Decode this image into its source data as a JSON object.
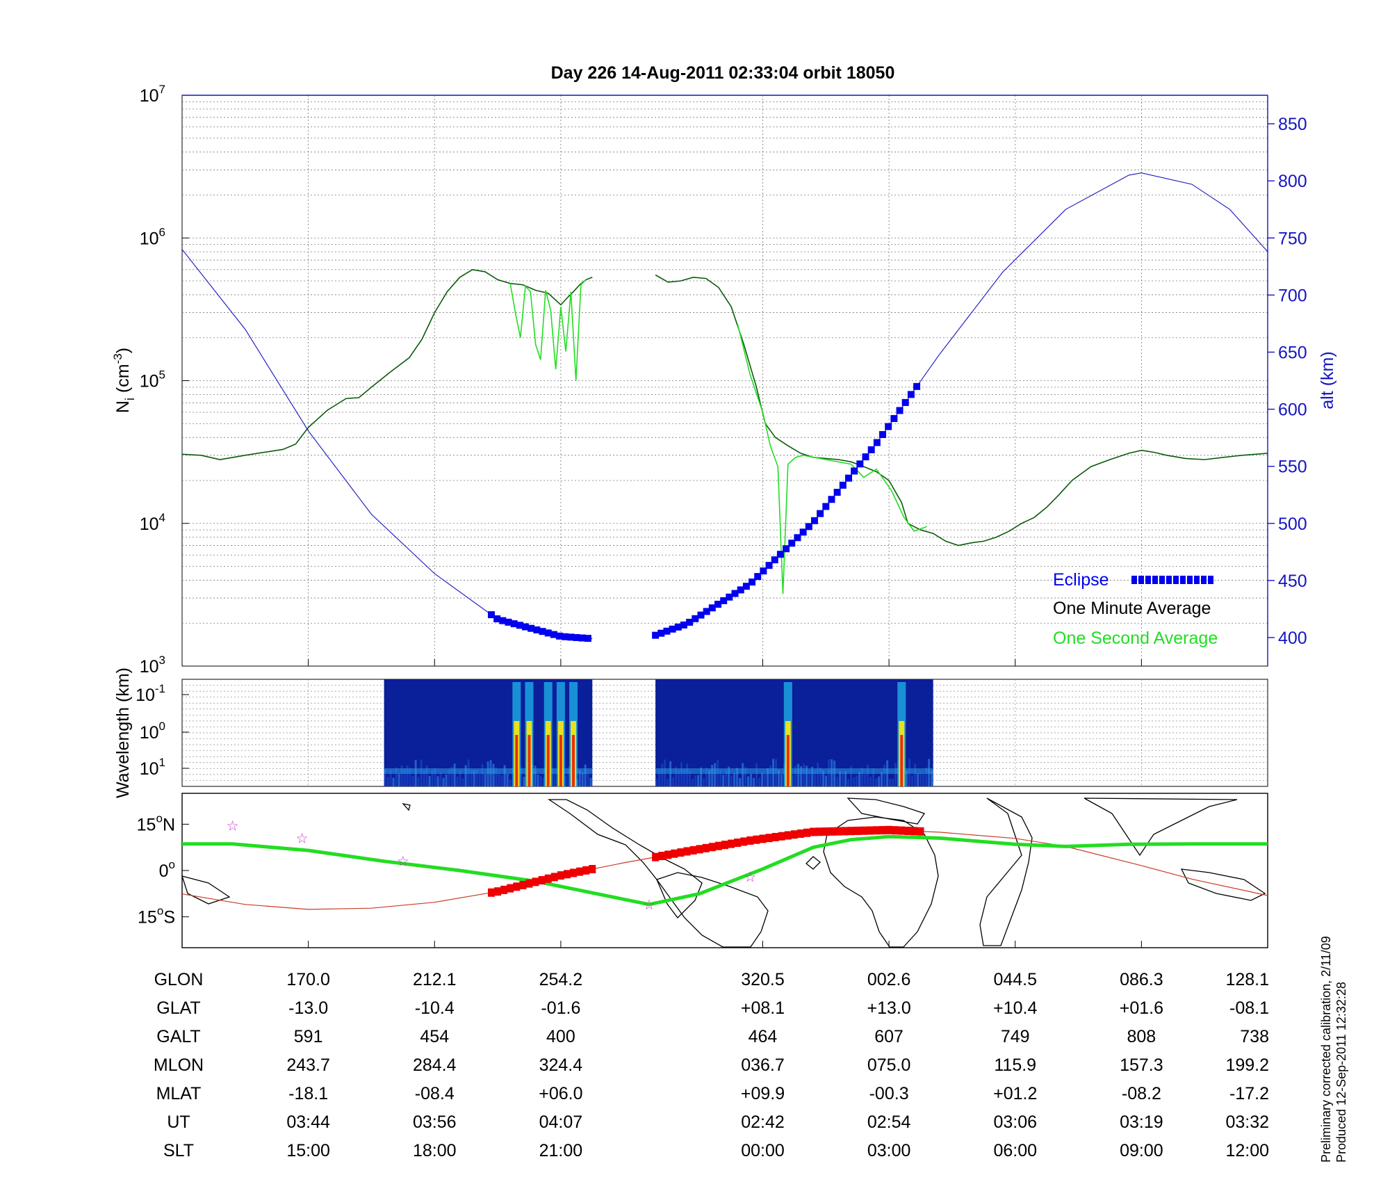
{
  "chart_data": [
    {
      "type": "line",
      "title": "Day 226  14-Aug-2011 02:33:04   orbit 18050",
      "ylabel": "N",
      "ylabel_sub": "i",
      "ylabel_unit": " (cm",
      "ylabel_exp": "-3",
      "ylabel_close": ")",
      "y_scale": "log",
      "ylim": [
        1000,
        10000000
      ],
      "y_ticks": [
        {
          "base": "10",
          "exp": "3",
          "value": 1000
        },
        {
          "base": "10",
          "exp": "4",
          "value": 10000
        },
        {
          "base": "10",
          "exp": "5",
          "value": 100000
        },
        {
          "base": "10",
          "exp": "6",
          "value": 1000000
        },
        {
          "base": "10",
          "exp": "7",
          "value": 10000000
        }
      ],
      "y2label": "alt (km)",
      "y2lim": [
        375,
        875
      ],
      "y2_ticks": [
        "400",
        "450",
        "500",
        "550",
        "600",
        "650",
        "700",
        "750",
        "800",
        "850"
      ],
      "xlim": [
        0,
        8.6
      ],
      "x_ticks": [
        1,
        2,
        3,
        4.6,
        5.6,
        6.6,
        7.6,
        8.6
      ],
      "grid": true,
      "legend_position": "bottom-right",
      "legend": [
        {
          "label": "Eclipse",
          "color": "#0000ee"
        },
        {
          "label": "One Minute Average",
          "color": "#000000"
        },
        {
          "label": "One Second Average",
          "color": "#22dd22"
        }
      ],
      "series": [
        {
          "name": "One Minute Average",
          "color": "#0a5a0a",
          "axis": "left",
          "segments": [
            [
              [
                0,
                30500
              ],
              [
                0.15,
                30000
              ],
              [
                0.3,
                28000
              ],
              [
                0.5,
                30000
              ],
              [
                0.8,
                33000
              ],
              [
                0.9,
                36000
              ],
              [
                1.0,
                47000
              ],
              [
                1.15,
                62000
              ],
              [
                1.3,
                75000
              ],
              [
                1.4,
                76000
              ],
              [
                1.5,
                90000
              ],
              [
                1.65,
                115000
              ],
              [
                1.8,
                145000
              ],
              [
                1.9,
                195000
              ],
              [
                2.0,
                300000
              ],
              [
                2.1,
                420000
              ],
              [
                2.2,
                530000
              ],
              [
                2.3,
                600000
              ],
              [
                2.4,
                580000
              ],
              [
                2.5,
                510000
              ],
              [
                2.6,
                480000
              ],
              [
                2.7,
                470000
              ],
              [
                2.8,
                430000
              ],
              [
                2.9,
                410000
              ],
              [
                3.0,
                340000
              ],
              [
                3.05,
                380000
              ],
              [
                3.1,
                420000
              ],
              [
                3.15,
                470000
              ],
              [
                3.2,
                510000
              ],
              [
                3.25,
                530000
              ]
            ],
            [
              [
                3.75,
                550000
              ],
              [
                3.85,
                490000
              ],
              [
                3.95,
                500000
              ],
              [
                4.05,
                530000
              ],
              [
                4.15,
                520000
              ],
              [
                4.25,
                450000
              ],
              [
                4.35,
                330000
              ],
              [
                4.45,
                180000
              ],
              [
                4.55,
                90000
              ],
              [
                4.62,
                50000
              ],
              [
                4.7,
                40000
              ],
              [
                4.8,
                35000
              ],
              [
                4.9,
                31000
              ],
              [
                5.0,
                29000
              ],
              [
                5.1,
                28500
              ],
              [
                5.2,
                28000
              ],
              [
                5.3,
                27000
              ],
              [
                5.4,
                25000
              ],
              [
                5.5,
                23000
              ],
              [
                5.6,
                20000
              ],
              [
                5.7,
                14000
              ],
              [
                5.75,
                10000
              ],
              [
                5.85,
                9000
              ],
              [
                5.95,
                8500
              ],
              [
                6.05,
                7500
              ],
              [
                6.15,
                7000
              ],
              [
                6.25,
                7300
              ],
              [
                6.35,
                7500
              ],
              [
                6.45,
                8000
              ],
              [
                6.55,
                8800
              ],
              [
                6.65,
                10000
              ],
              [
                6.75,
                11000
              ],
              [
                6.85,
                13000
              ],
              [
                6.95,
                16000
              ],
              [
                7.05,
                20000
              ],
              [
                7.2,
                25000
              ],
              [
                7.35,
                28000
              ],
              [
                7.5,
                31000
              ],
              [
                7.6,
                32500
              ],
              [
                7.7,
                31500
              ],
              [
                7.8,
                30000
              ],
              [
                7.95,
                28500
              ],
              [
                8.1,
                28000
              ],
              [
                8.25,
                29000
              ],
              [
                8.4,
                30000
              ],
              [
                8.6,
                31000
              ]
            ]
          ]
        },
        {
          "name": "One Second Average",
          "color": "#22dd22",
          "axis": "left",
          "segments": [
            [
              [
                2.6,
                480000
              ],
              [
                2.64,
                300000
              ],
              [
                2.68,
                200000
              ],
              [
                2.72,
                460000
              ],
              [
                2.76,
                420000
              ],
              [
                2.8,
                180000
              ],
              [
                2.84,
                140000
              ],
              [
                2.88,
                430000
              ],
              [
                2.92,
                310000
              ],
              [
                2.96,
                120000
              ],
              [
                3.0,
                330000
              ],
              [
                3.04,
                160000
              ],
              [
                3.08,
                420000
              ],
              [
                3.12,
                100000
              ],
              [
                3.16,
                470000
              ],
              [
                3.2,
                510000
              ]
            ],
            [
              [
                4.4,
                250000
              ],
              [
                4.5,
                110000
              ],
              [
                4.6,
                60000
              ],
              [
                4.66,
                35000
              ],
              [
                4.72,
                25000
              ],
              [
                4.76,
                3200
              ],
              [
                4.8,
                26000
              ],
              [
                4.86,
                29000
              ],
              [
                4.92,
                30000
              ],
              [
                5.1,
                28000
              ],
              [
                5.3,
                26000
              ],
              [
                5.4,
                21000
              ],
              [
                5.5,
                24000
              ],
              [
                5.62,
                17000
              ],
              [
                5.72,
                11000
              ],
              [
                5.8,
                8800
              ],
              [
                5.9,
                9500
              ]
            ]
          ]
        },
        {
          "name": "alt (km)",
          "color": "#1515c0",
          "axis": "right",
          "segments": [
            [
              [
                0,
                740
              ],
              [
                0.5,
                670
              ],
              [
                1.0,
                581
              ],
              [
                1.5,
                508
              ],
              [
                2.0,
                456
              ],
              [
                2.5,
                416
              ],
              [
                3.0,
                401
              ],
              [
                3.25,
                399
              ]
            ],
            [
              [
                3.75,
                402
              ],
              [
                4.0,
                412
              ],
              [
                4.5,
                447
              ],
              [
                5.0,
                501
              ],
              [
                5.5,
                570
              ],
              [
                6.0,
                648
              ],
              [
                6.5,
                720
              ],
              [
                7.0,
                775
              ],
              [
                7.5,
                805
              ],
              [
                7.6,
                807
              ],
              [
                8.0,
                797
              ],
              [
                8.3,
                775
              ],
              [
                8.6,
                738
              ]
            ]
          ]
        }
      ],
      "eclipse": [
        {
          "from": 2.45,
          "to": 3.25
        },
        {
          "from": 3.75,
          "to": 5.85
        }
      ]
    },
    {
      "type": "heatmap",
      "ylabel": "Wavelength (km)",
      "y_ticks": [
        {
          "base": "10",
          "exp": "-1"
        },
        {
          "base": "10",
          "exp": "0"
        },
        {
          "base": "10",
          "exp": "1"
        }
      ],
      "blocks": [
        {
          "from": 1.6,
          "to": 3.25,
          "bright_at": [
            2.65,
            2.75,
            2.9,
            3.0,
            3.1
          ]
        },
        {
          "from": 3.75,
          "to": 5.95,
          "bright_at": [
            4.8,
            5.7
          ]
        }
      ]
    },
    {
      "type": "line",
      "y_ticks": [
        {
          "label": "15",
          "sup": "o",
          "hemi": "N",
          "value": 15
        },
        {
          "label": "0",
          "sup": "o",
          "hemi": "",
          "value": 0
        },
        {
          "label": "15",
          "sup": "o",
          "hemi": "S",
          "value": -15
        }
      ],
      "ylim": [
        -25,
        25
      ],
      "series": [
        {
          "name": "geographic track",
          "color": "#c83c28",
          "points": [
            [
              0,
              -7.6
            ],
            [
              0.5,
              -11
            ],
            [
              1.0,
              -12.6
            ],
            [
              1.5,
              -12.2
            ],
            [
              2.0,
              -10.3
            ],
            [
              2.5,
              -6.8
            ],
            [
              3.0,
              -1.6
            ],
            [
              3.5,
              2.5
            ],
            [
              4.0,
              6.2
            ],
            [
              4.5,
              9.7
            ],
            [
              5.0,
              12.5
            ],
            [
              5.6,
              13.1
            ],
            [
              6.0,
              12.4
            ],
            [
              6.6,
              10.4
            ],
            [
              7.0,
              7.8
            ],
            [
              7.6,
              1.6
            ],
            [
              8.0,
              -2.8
            ],
            [
              8.6,
              -8.1
            ]
          ]
        },
        {
          "name": "magnetic equator",
          "color": "#22dd22",
          "points": [
            [
              0,
              8.6
            ],
            [
              0.4,
              8.6
            ],
            [
              1.0,
              6.5
            ],
            [
              1.6,
              3.0
            ],
            [
              2.2,
              0
            ],
            [
              2.8,
              -3.5
            ],
            [
              3.4,
              -8.5
            ],
            [
              3.7,
              -11
            ],
            [
              4.1,
              -7.5
            ],
            [
              4.6,
              0.5
            ],
            [
              5.0,
              7.5
            ],
            [
              5.3,
              10
            ],
            [
              5.6,
              11
            ],
            [
              6.0,
              10.5
            ],
            [
              6.6,
              8.5
            ],
            [
              7.0,
              7.8
            ],
            [
              7.5,
              8.5
            ],
            [
              8.0,
              8.6
            ],
            [
              8.6,
              8.6
            ]
          ]
        }
      ],
      "stars": [
        [
          0.4,
          14.5
        ],
        [
          0.95,
          10.5
        ],
        [
          1.75,
          3.0
        ],
        [
          3.7,
          -11
        ],
        [
          4.5,
          -2
        ]
      ],
      "eclipse": [
        {
          "from": 2.45,
          "to": 3.25
        },
        {
          "from": 3.75,
          "to": 5.85
        }
      ]
    }
  ],
  "table": {
    "row_labels": [
      "GLON",
      "GLAT",
      "GALT",
      "MLON",
      "MLAT",
      "UT",
      "SLT"
    ],
    "columns": [
      [
        "170.0",
        "-13.0",
        "591",
        "243.7",
        "-18.1",
        "03:44",
        "15:00"
      ],
      [
        "212.1",
        "-10.4",
        "454",
        "284.4",
        "-08.4",
        "03:56",
        "18:00"
      ],
      [
        "254.2",
        "-01.6",
        "400",
        "324.4",
        "+06.0",
        "04:07",
        "21:00"
      ],
      [
        "320.5",
        "+08.1",
        "464",
        "036.7",
        "+09.9",
        "02:42",
        "00:00"
      ],
      [
        "002.6",
        "+13.0",
        "607",
        "075.0",
        "-00.3",
        "02:54",
        "03:00"
      ],
      [
        "044.5",
        "+10.4",
        "749",
        "115.9",
        "+01.2",
        "03:06",
        "06:00"
      ],
      [
        "086.3",
        "+01.6",
        "808",
        "157.3",
        "-08.2",
        "03:19",
        "09:00"
      ],
      [
        "128.1",
        "-08.1",
        "738",
        "199.2",
        "-17.2",
        "03:32",
        "12:00"
      ]
    ]
  },
  "footer": {
    "line1": "Preliminary corrected calibration, 2/11/09",
    "line2": "Produced 12-Sep-2011 12:32:28"
  },
  "colors": {
    "alt_axis": "#1515c0",
    "eclipse": "#0000ee",
    "eclipse_map": "#ee0000"
  }
}
